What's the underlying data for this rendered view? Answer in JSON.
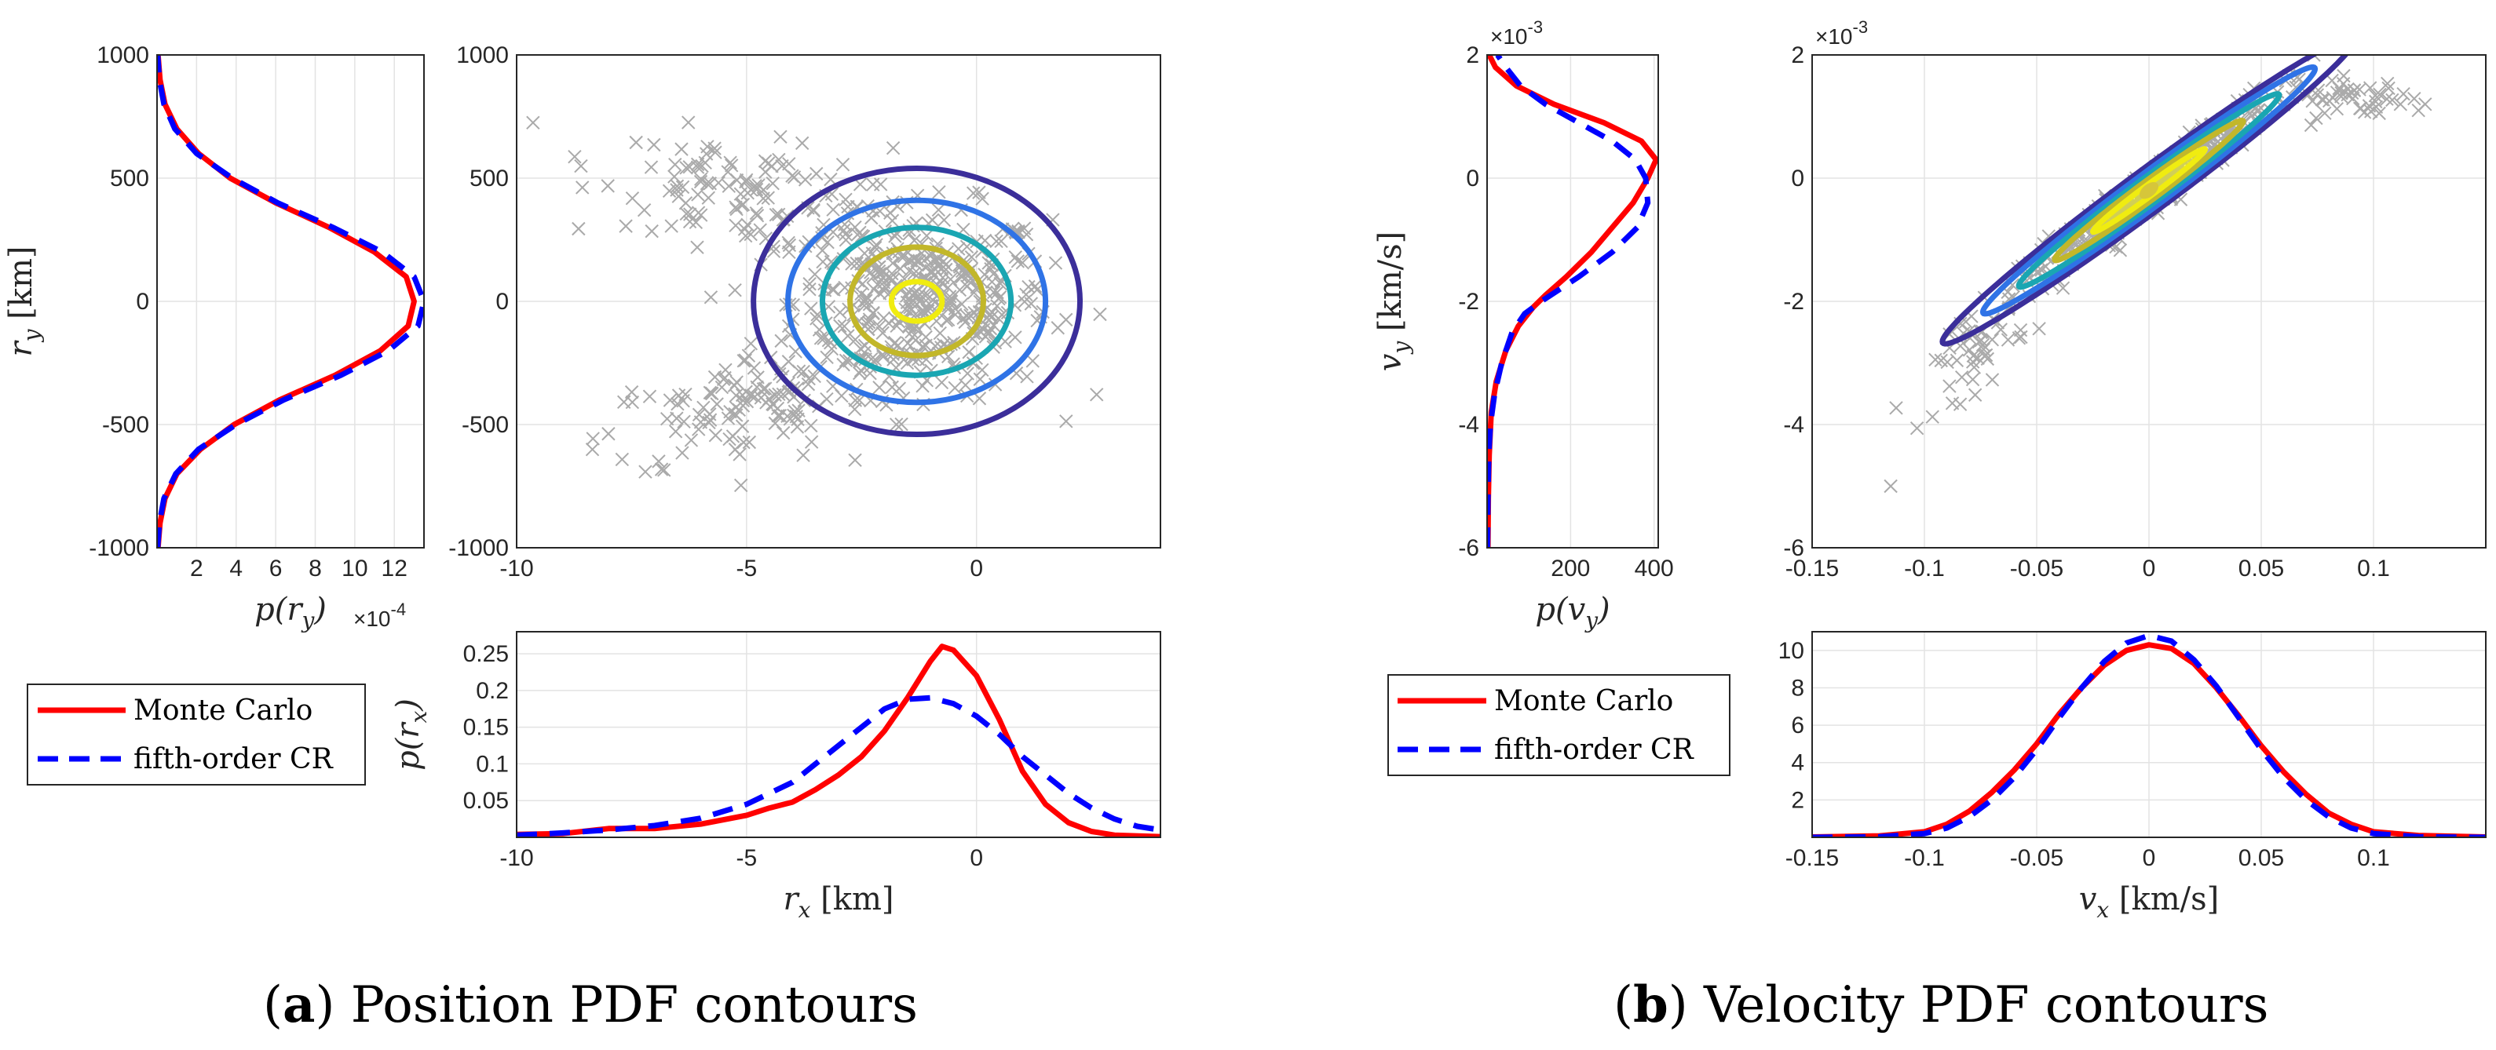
{
  "captions": {
    "a_prefix": "(",
    "a_letter": "a",
    "a_text": ") Position PDF contours",
    "b_prefix": "(",
    "b_letter": "b",
    "b_text": ") Velocity PDF contours"
  },
  "colors": {
    "monte_carlo": "#ff0000",
    "cr": "#0000ff",
    "scatter": "#aaaaaa",
    "contours": [
      "#3b2e9a",
      "#2f73e6",
      "#1aa6b2",
      "#c2b72a",
      "#f0ec10"
    ]
  },
  "legend": {
    "monte_carlo": "Monte Carlo",
    "cr": "fifth-order CR"
  },
  "chart_data": [
    {
      "id": "a_main",
      "type": "scatter",
      "xlim": [
        -10,
        4
      ],
      "ylim": [
        -1000,
        1000
      ],
      "xticks": [
        "-10",
        "-5",
        "0"
      ],
      "xtick_vals": [
        -10,
        -5,
        0
      ],
      "yticks": [
        "-1000",
        "-500",
        "0",
        "500",
        "1000"
      ],
      "ytick_vals": [
        -1000,
        -500,
        0,
        500,
        1000
      ],
      "grid": true,
      "contours": [
        {
          "cx": -1.3,
          "cy": 0,
          "rx": 3.55,
          "ry": 540
        },
        {
          "cx": -1.3,
          "cy": 0,
          "rx": 2.8,
          "ry": 410
        },
        {
          "cx": -1.3,
          "cy": 0,
          "rx": 2.05,
          "ry": 300
        },
        {
          "cx": -1.3,
          "cy": 0,
          "rx": 1.45,
          "ry": 220
        },
        {
          "cx": -1.3,
          "cy": 0,
          "rx": 0.55,
          "ry": 80
        }
      ],
      "scatter_clouds": [
        {
          "cx": -1.2,
          "cy": 0,
          "sx": 1.4,
          "sy": 190,
          "n": 420,
          "slope": 0
        },
        {
          "cx": -4.8,
          "cy": 420,
          "sx": 1.7,
          "sy": 110,
          "n": 130,
          "slope": -40
        },
        {
          "cx": -4.8,
          "cy": -420,
          "sx": 1.7,
          "sy": 110,
          "n": 130,
          "slope": 40
        }
      ]
    },
    {
      "id": "a_py",
      "type": "line",
      "xlim": [
        0,
        13.5
      ],
      "ylim": [
        -1000,
        1000
      ],
      "xticks": [
        "2",
        "4",
        "6",
        "8",
        "10",
        "12"
      ],
      "xtick_vals": [
        2,
        4,
        6,
        8,
        10,
        12
      ],
      "yticks": [
        "-1000",
        "-500",
        "0",
        "500",
        "1000"
      ],
      "ytick_vals": [
        -1000,
        -500,
        0,
        500,
        1000
      ],
      "xlabel_main": "p(r",
      "xlabel_sub": "y",
      "xlabel_end": ")",
      "ylabel_main": "r",
      "ylabel_sub": "y",
      "ylabel_unit": " [km]",
      "exponent_label": "×10",
      "exponent_power": "-4",
      "grid": true,
      "series": [
        {
          "name": "Monte Carlo",
          "style": "solid",
          "y": [
            -1000,
            -900,
            -800,
            -700,
            -600,
            -500,
            -400,
            -300,
            -200,
            -100,
            0,
            100,
            200,
            300,
            400,
            500,
            600,
            700,
            800,
            900,
            1000
          ],
          "x": [
            0.05,
            0.15,
            0.4,
            1.0,
            2.2,
            3.9,
            6.2,
            9.0,
            11.3,
            12.7,
            13.0,
            12.6,
            11.0,
            8.7,
            6.0,
            3.7,
            2.1,
            1.0,
            0.4,
            0.15,
            0.05
          ]
        },
        {
          "name": "fifth-order CR",
          "style": "dashed",
          "y": [
            -1000,
            -900,
            -800,
            -700,
            -600,
            -500,
            -400,
            -300,
            -200,
            -100,
            0,
            100,
            200,
            300,
            400,
            500,
            600,
            700,
            800,
            900,
            1000
          ],
          "x": [
            0.03,
            0.12,
            0.35,
            0.95,
            2.1,
            4.0,
            6.4,
            9.3,
            11.7,
            13.2,
            13.5,
            13.0,
            11.4,
            8.9,
            6.1,
            3.8,
            2.0,
            0.9,
            0.35,
            0.12,
            0.03
          ]
        }
      ]
    },
    {
      "id": "a_px",
      "type": "line",
      "xlim": [
        -10,
        4
      ],
      "ylim": [
        0,
        0.28
      ],
      "xticks": [
        "-10",
        "-5",
        "0"
      ],
      "xtick_vals": [
        -10,
        -5,
        0
      ],
      "yticks": [
        "0.05",
        "0.1",
        "0.15",
        "0.2",
        "0.25"
      ],
      "ytick_vals": [
        0.05,
        0.1,
        0.15,
        0.2,
        0.25
      ],
      "xlabel_main": "r",
      "xlabel_sub": "x",
      "xlabel_unit": " [km]",
      "ylabel_main": "p(r",
      "ylabel_sub": "x",
      "ylabel_end": ")",
      "grid": true,
      "series": [
        {
          "name": "Monte Carlo",
          "style": "solid",
          "x": [
            -10,
            -9,
            -8,
            -7,
            -6,
            -5,
            -4.5,
            -4,
            -3.5,
            -3,
            -2.5,
            -2,
            -1.5,
            -1,
            -0.75,
            -0.5,
            0,
            0.5,
            1,
            1.5,
            2,
            2.5,
            3,
            4
          ],
          "y": [
            0.004,
            0.005,
            0.012,
            0.012,
            0.018,
            0.03,
            0.04,
            0.048,
            0.065,
            0.085,
            0.11,
            0.145,
            0.19,
            0.24,
            0.26,
            0.255,
            0.22,
            0.16,
            0.09,
            0.045,
            0.02,
            0.008,
            0.003,
            0.001
          ]
        },
        {
          "name": "fifth-order CR",
          "style": "dashed",
          "x": [
            -10,
            -9,
            -8,
            -7,
            -6,
            -5,
            -4,
            -3.5,
            -3,
            -2.5,
            -2,
            -1.5,
            -1,
            -0.5,
            0,
            0.5,
            1,
            1.5,
            2,
            2.5,
            3,
            3.5,
            4
          ],
          "y": [
            0.003,
            0.006,
            0.01,
            0.016,
            0.026,
            0.045,
            0.075,
            0.1,
            0.125,
            0.15,
            0.175,
            0.188,
            0.19,
            0.182,
            0.165,
            0.14,
            0.11,
            0.085,
            0.06,
            0.04,
            0.025,
            0.015,
            0.01
          ]
        }
      ]
    },
    {
      "id": "b_main",
      "type": "scatter",
      "xlim": [
        -0.15,
        0.15
      ],
      "ylim": [
        -0.006,
        0.002
      ],
      "xticks": [
        "-0.15",
        "-0.1",
        "-0.05",
        "0",
        "0.05",
        "0.1"
      ],
      "xtick_vals": [
        -0.15,
        -0.1,
        -0.05,
        0,
        0.05,
        0.1
      ],
      "yticks": [
        "-6",
        "-4",
        "-2",
        "0",
        "2"
      ],
      "ytick_vals": [
        -0.006,
        -0.004,
        -0.002,
        0,
        0.002
      ],
      "exponent_label": "×10",
      "exponent_power": "-3",
      "grid": true,
      "contours": [
        {
          "cx": 0.0,
          "cy": -0.0002,
          "a": 0.092,
          "b": 0.00042,
          "angle": 0.02667
        },
        {
          "cx": 0.0,
          "cy": -0.0002,
          "a": 0.074,
          "b": 0.00034,
          "angle": 0.02667
        },
        {
          "cx": 0.0,
          "cy": -0.0002,
          "a": 0.058,
          "b": 0.00026,
          "angle": 0.02667
        },
        {
          "cx": 0.0,
          "cy": -0.0002,
          "a": 0.042,
          "b": 0.00019,
          "angle": 0.02667
        },
        {
          "cx": 0.0,
          "cy": -0.0002,
          "a": 0.025,
          "b": 0.00011,
          "angle": 0.02667
        }
      ],
      "scatter_clouds": [
        {
          "cx": 0.0,
          "cy": -0.0002,
          "sx": 0.028,
          "sy": 0.0002,
          "n": 380,
          "slope": 0.02667
        },
        {
          "cx": -0.075,
          "cy": -0.0028,
          "sx": 0.01,
          "sy": 0.0003,
          "n": 45,
          "slope": 0.026
        },
        {
          "cx": 0.09,
          "cy": 0.0013,
          "sx": 0.014,
          "sy": 0.00015,
          "n": 45,
          "slope": 0.0
        }
      ],
      "scatter_points": [
        [
          -0.115,
          -0.005
        ],
        [
          0.12,
          0.0011
        ],
        [
          0.123,
          0.0012
        ],
        [
          0.112,
          0.0012
        ]
      ]
    },
    {
      "id": "b_py",
      "type": "line",
      "xlim": [
        0,
        410
      ],
      "ylim": [
        -0.006,
        0.002
      ],
      "xticks": [
        "200",
        "400"
      ],
      "xtick_vals": [
        200,
        400
      ],
      "yticks": [
        "-6",
        "-4",
        "-2",
        "0",
        "2"
      ],
      "ytick_vals": [
        -0.006,
        -0.004,
        -0.002,
        0,
        0.002
      ],
      "xlabel_main": "p(v",
      "xlabel_sub": "y",
      "xlabel_end": ")",
      "ylabel_main": "v",
      "ylabel_sub": "y",
      "ylabel_unit": " [km/s]",
      "exponent_label": "×10",
      "exponent_power": "-3",
      "grid": true,
      "series": [
        {
          "name": "Monte Carlo",
          "style": "solid",
          "y": [
            -0.006,
            -0.0052,
            -0.0045,
            -0.0038,
            -0.0033,
            -0.0028,
            -0.0024,
            -0.0021,
            -0.0019,
            -0.0016,
            -0.0012,
            -0.0008,
            -0.0004,
            0.0,
            0.0003,
            0.0006,
            0.0009,
            0.0012,
            0.0015,
            0.0018,
            0.002
          ],
          "x": [
            2,
            3,
            5,
            10,
            22,
            45,
            75,
            110,
            140,
            190,
            250,
            300,
            350,
            385,
            405,
            370,
            280,
            160,
            70,
            20,
            5
          ]
        },
        {
          "name": "fifth-order CR",
          "style": "dashed",
          "y": [
            -0.006,
            -0.0052,
            -0.0045,
            -0.004,
            -0.0035,
            -0.003,
            -0.0025,
            -0.0022,
            -0.002,
            -0.0016,
            -0.0012,
            -0.0008,
            -0.0004,
            0.0,
            0.0003,
            0.0006,
            0.0009,
            0.0012,
            0.0015,
            0.0018,
            0.002
          ],
          "x": [
            1,
            2,
            4,
            8,
            18,
            35,
            60,
            90,
            130,
            220,
            300,
            360,
            385,
            380,
            355,
            300,
            220,
            140,
            80,
            45,
            25
          ]
        }
      ]
    },
    {
      "id": "b_px",
      "type": "line",
      "xlim": [
        -0.15,
        0.15
      ],
      "ylim": [
        0,
        11
      ],
      "xticks": [
        "-0.15",
        "-0.1",
        "-0.05",
        "0",
        "0.05",
        "0.1"
      ],
      "xtick_vals": [
        -0.15,
        -0.1,
        -0.05,
        0,
        0.05,
        0.1
      ],
      "yticks": [
        "2",
        "4",
        "6",
        "8",
        "10"
      ],
      "ytick_vals": [
        2,
        4,
        6,
        8,
        10
      ],
      "xlabel_main": "v",
      "xlabel_sub": "x",
      "xlabel_unit": " [km/s]",
      "ylabel_main": "p(v",
      "ylabel_sub": "x",
      "ylabel_end": ")",
      "grid": true,
      "series": [
        {
          "name": "Monte Carlo",
          "style": "solid",
          "x": [
            -0.15,
            -0.12,
            -0.1,
            -0.09,
            -0.08,
            -0.07,
            -0.06,
            -0.05,
            -0.04,
            -0.03,
            -0.02,
            -0.01,
            0,
            0.01,
            0.02,
            0.03,
            0.04,
            0.05,
            0.06,
            0.07,
            0.08,
            0.09,
            0.1,
            0.12,
            0.15
          ],
          "y": [
            0.02,
            0.08,
            0.3,
            0.7,
            1.4,
            2.4,
            3.6,
            5.0,
            6.6,
            8.0,
            9.2,
            10.0,
            10.3,
            10.1,
            9.3,
            8.0,
            6.5,
            4.9,
            3.5,
            2.3,
            1.3,
            0.7,
            0.3,
            0.1,
            0.02
          ]
        },
        {
          "name": "fifth-order CR",
          "style": "dashed",
          "x": [
            -0.15,
            -0.12,
            -0.1,
            -0.09,
            -0.08,
            -0.07,
            -0.06,
            -0.05,
            -0.04,
            -0.03,
            -0.02,
            -0.01,
            0,
            0.01,
            0.02,
            0.03,
            0.04,
            0.05,
            0.06,
            0.07,
            0.08,
            0.09,
            0.1,
            0.12,
            0.15
          ],
          "y": [
            0.0,
            0.03,
            0.2,
            0.5,
            1.1,
            2.0,
            3.2,
            4.7,
            6.4,
            8.0,
            9.4,
            10.4,
            10.8,
            10.5,
            9.5,
            8.1,
            6.4,
            4.7,
            3.2,
            2.0,
            1.1,
            0.5,
            0.2,
            0.03,
            0.0
          ]
        }
      ]
    }
  ]
}
